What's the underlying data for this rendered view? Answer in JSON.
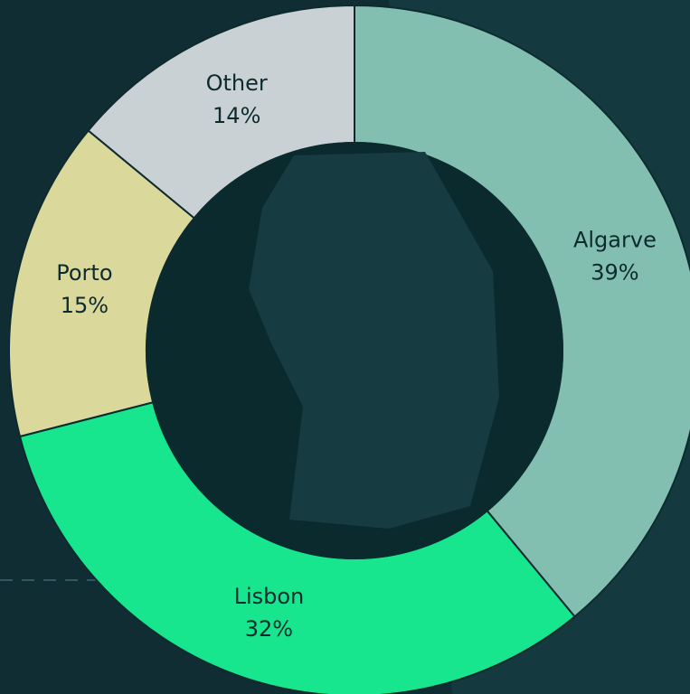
{
  "chart_data": {
    "type": "donut",
    "categories": [
      "Algarve",
      "Lisbon",
      "Porto",
      "Other"
    ],
    "values": [
      39,
      32,
      15,
      14
    ],
    "value_labels": [
      "39%",
      "32%",
      "15%",
      "14%"
    ],
    "colors": [
      "#82bfb0",
      "#18e68e",
      "#dbd89c",
      "#c9d1d4"
    ]
  }
}
